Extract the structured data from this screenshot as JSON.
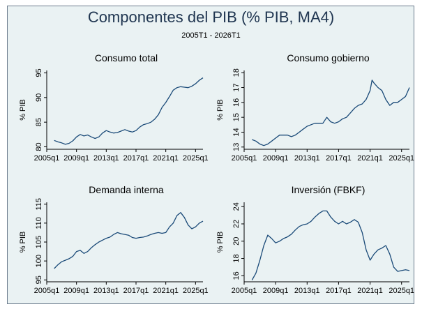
{
  "figure": {
    "title": "Componentes del PIB (% PIB, MA4)",
    "subtitle": "2005T1 - 2026T1"
  },
  "colors": {
    "background": "#eaf2f3",
    "line": "#1a4a78",
    "text": "#000000",
    "title": "#1f3550"
  },
  "chart_data": [
    {
      "type": "line",
      "title": "Consumo total",
      "ylabel": "% PIB",
      "xlabel": "",
      "x_tick_labels": [
        "2005q1",
        "2009q1",
        "2013q1",
        "2017q1",
        "2021q1",
        "2025q1"
      ],
      "x_ticks": [
        2005,
        2009,
        2013,
        2017,
        2021,
        2025
      ],
      "xlim": [
        2005,
        2026
      ],
      "y_ticks": [
        80,
        85,
        90,
        95
      ],
      "ylim": [
        79.5,
        95.5
      ],
      "grid": false,
      "series": [
        {
          "x": [
            2006,
            2006.5,
            2007,
            2007.5,
            2008,
            2008.5,
            2009,
            2009.5,
            2010,
            2010.5,
            2011,
            2011.5,
            2012,
            2012.5,
            2013,
            2013.5,
            2014,
            2014.5,
            2015,
            2015.5,
            2016,
            2016.5,
            2017,
            2017.5,
            2018,
            2018.5,
            2019,
            2019.5,
            2020,
            2020.5,
            2021,
            2021.5,
            2022,
            2022.5,
            2023,
            2023.5,
            2024,
            2024.5,
            2025,
            2025.5,
            2026
          ],
          "y": [
            81.3,
            81.0,
            80.8,
            80.5,
            80.7,
            81.2,
            82.0,
            82.5,
            82.2,
            82.4,
            82.0,
            81.7,
            82.0,
            82.8,
            83.3,
            83.0,
            82.8,
            82.9,
            83.2,
            83.5,
            83.2,
            83.0,
            83.3,
            84.0,
            84.5,
            84.7,
            85.0,
            85.6,
            86.5,
            88.0,
            89.0,
            90.2,
            91.5,
            92.0,
            92.2,
            92.1,
            92.0,
            92.3,
            92.8,
            93.5,
            94.0
          ]
        }
      ]
    },
    {
      "type": "line",
      "title": "Consumo gobierno",
      "ylabel": "% PIB",
      "xlabel": "",
      "x_tick_labels": [
        "2005q1",
        "2009q1",
        "2013q1",
        "2017q1",
        "2021q1",
        "2025q1"
      ],
      "x_ticks": [
        2005,
        2009,
        2013,
        2017,
        2021,
        2025
      ],
      "xlim": [
        2005,
        2026
      ],
      "y_ticks": [
        13,
        14,
        15,
        16,
        17,
        18
      ],
      "ylim": [
        12.85,
        18.15
      ],
      "grid": false,
      "series": [
        {
          "x": [
            2006,
            2006.5,
            2007,
            2007.5,
            2008,
            2008.5,
            2009,
            2009.5,
            2010,
            2010.5,
            2011,
            2011.5,
            2012,
            2012.5,
            2013,
            2013.5,
            2014,
            2014.5,
            2015,
            2015.5,
            2016,
            2016.5,
            2017,
            2017.5,
            2018,
            2018.5,
            2019,
            2019.5,
            2020,
            2020.5,
            2021,
            2021.25,
            2021.5,
            2022,
            2022.5,
            2023,
            2023.5,
            2024,
            2024.5,
            2025,
            2025.5,
            2026
          ],
          "y": [
            13.5,
            13.4,
            13.2,
            13.1,
            13.2,
            13.4,
            13.6,
            13.8,
            13.8,
            13.8,
            13.7,
            13.8,
            14.0,
            14.2,
            14.4,
            14.5,
            14.6,
            14.6,
            14.6,
            15.0,
            14.7,
            14.6,
            14.7,
            14.9,
            15.0,
            15.3,
            15.6,
            15.8,
            15.9,
            16.2,
            16.8,
            17.5,
            17.3,
            17.0,
            16.8,
            16.2,
            15.8,
            16.0,
            16.0,
            16.2,
            16.4,
            17.0
          ]
        }
      ]
    },
    {
      "type": "line",
      "title": "Demanda interna",
      "ylabel": "% PIB",
      "xlabel": "",
      "x_tick_labels": [
        "2005q1",
        "2009q1",
        "2013q1",
        "2017q1",
        "2021q1",
        "2025q1"
      ],
      "x_ticks": [
        2005,
        2009,
        2013,
        2017,
        2021,
        2025
      ],
      "xlim": [
        2005,
        2026
      ],
      "y_ticks": [
        95,
        100,
        105,
        110,
        115
      ],
      "ylim": [
        94.5,
        115.5
      ],
      "grid": false,
      "series": [
        {
          "x": [
            2006,
            2006.5,
            2007,
            2007.5,
            2008,
            2008.5,
            2009,
            2009.5,
            2010,
            2010.5,
            2011,
            2011.5,
            2012,
            2012.5,
            2013,
            2013.5,
            2014,
            2014.5,
            2015,
            2015.5,
            2016,
            2016.5,
            2017,
            2017.5,
            2018,
            2018.5,
            2019,
            2019.5,
            2020,
            2020.5,
            2021,
            2021.5,
            2022,
            2022.5,
            2023,
            2023.5,
            2024,
            2024.5,
            2025,
            2025.5,
            2026
          ],
          "y": [
            98.0,
            99.0,
            99.8,
            100.2,
            100.6,
            101.2,
            102.5,
            102.8,
            102.0,
            102.5,
            103.5,
            104.3,
            105.0,
            105.5,
            106.0,
            106.3,
            107.0,
            107.5,
            107.2,
            107.0,
            106.8,
            106.2,
            106.0,
            106.2,
            106.3,
            106.6,
            107.0,
            107.3,
            107.5,
            107.3,
            107.5,
            109.0,
            110.0,
            112.0,
            112.8,
            111.5,
            109.5,
            108.5,
            109.0,
            110.0,
            110.5
          ]
        }
      ]
    },
    {
      "type": "line",
      "title": "Inversión (FBKF)",
      "ylabel": "% PIB",
      "xlabel": "",
      "x_tick_labels": [
        "2005q1",
        "2009q1",
        "2013q1",
        "2017q1",
        "2021q1",
        "2025q1"
      ],
      "x_ticks": [
        2005,
        2009,
        2013,
        2017,
        2021,
        2025
      ],
      "xlim": [
        2005,
        2026
      ],
      "y_ticks": [
        16,
        18,
        20,
        22,
        24
      ],
      "ylim": [
        15.3,
        24.5
      ],
      "grid": false,
      "series": [
        {
          "x": [
            2006,
            2006.5,
            2007,
            2007.5,
            2008,
            2008.5,
            2009,
            2009.5,
            2010,
            2010.5,
            2011,
            2011.5,
            2012,
            2012.5,
            2013,
            2013.5,
            2014,
            2014.5,
            2015,
            2015.5,
            2016,
            2016.5,
            2017,
            2017.5,
            2018,
            2018.5,
            2019,
            2019.5,
            2020,
            2020.5,
            2021,
            2021.5,
            2022,
            2022.5,
            2023,
            2023.5,
            2024,
            2024.5,
            2025,
            2025.5,
            2026
          ],
          "y": [
            15.5,
            16.3,
            17.8,
            19.5,
            20.7,
            20.3,
            19.8,
            20.0,
            20.3,
            20.5,
            20.8,
            21.3,
            21.7,
            21.9,
            22.0,
            22.3,
            22.8,
            23.2,
            23.5,
            23.5,
            22.8,
            22.3,
            22.0,
            22.3,
            22.0,
            22.2,
            22.5,
            22.2,
            21.0,
            19.0,
            17.8,
            18.5,
            19.0,
            19.2,
            19.5,
            18.5,
            17.0,
            16.5,
            16.6,
            16.7,
            16.6
          ]
        }
      ]
    }
  ]
}
